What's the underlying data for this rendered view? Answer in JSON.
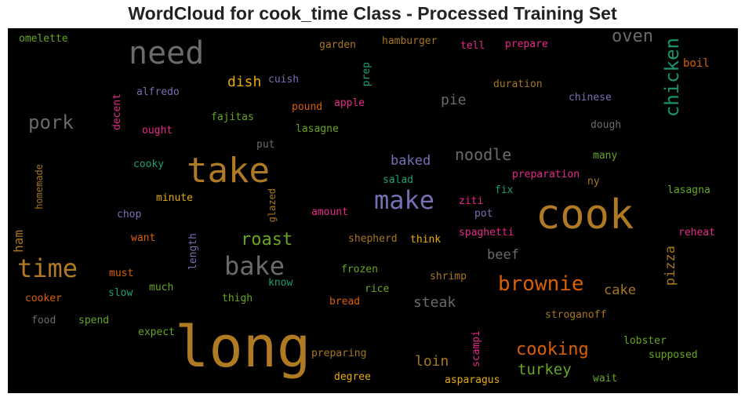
{
  "chart_data": {
    "type": "wordcloud",
    "title": "WordCloud for cook_time Class - Processed Training Set",
    "background": "#000000",
    "palette": {
      "gold": "#b07a22",
      "gray": "#6a6a6a",
      "green": "#1b9e77",
      "teal": "#199470",
      "orange": "#d95f02",
      "purple": "#7570b3",
      "pink": "#e7298a",
      "lime": "#66a61e",
      "yellow": "#e6ab02",
      "brown": "#a6761d"
    },
    "words": [
      {
        "text": "long",
        "color": "gold"
      },
      {
        "text": "cook",
        "color": "gold"
      },
      {
        "text": "take",
        "color": "gold"
      },
      {
        "text": "need",
        "color": "gray"
      },
      {
        "text": "make",
        "color": "purple"
      },
      {
        "text": "time",
        "color": "gold"
      },
      {
        "text": "bake",
        "color": "gray"
      },
      {
        "text": "chicken",
        "color": "teal"
      },
      {
        "text": "brownie",
        "color": "orange"
      },
      {
        "text": "cooking",
        "color": "orange"
      },
      {
        "text": "oven",
        "color": "gray"
      },
      {
        "text": "pork",
        "color": "gray"
      },
      {
        "text": "roast",
        "color": "lime"
      },
      {
        "text": "noodle",
        "color": "gray"
      },
      {
        "text": "turkey",
        "color": "lime"
      },
      {
        "text": "steak",
        "color": "gray"
      },
      {
        "text": "loin",
        "color": "brown"
      },
      {
        "text": "dish",
        "color": "yellow"
      },
      {
        "text": "pie",
        "color": "gray"
      },
      {
        "text": "beef",
        "color": "gray"
      },
      {
        "text": "pizza",
        "color": "brown"
      },
      {
        "text": "cake",
        "color": "brown"
      },
      {
        "text": "baked",
        "color": "purple"
      },
      {
        "text": "ham",
        "color": "brown"
      },
      {
        "text": "omelette",
        "color": "lime"
      },
      {
        "text": "garden",
        "color": "brown"
      },
      {
        "text": "hamburger",
        "color": "brown"
      },
      {
        "text": "tell",
        "color": "pink"
      },
      {
        "text": "prepare",
        "color": "pink"
      },
      {
        "text": "boil",
        "color": "orange"
      },
      {
        "text": "prep",
        "color": "green"
      },
      {
        "text": "cuish",
        "color": "purple"
      },
      {
        "text": "alfredo",
        "color": "purple"
      },
      {
        "text": "duration",
        "color": "brown"
      },
      {
        "text": "decent",
        "color": "pink"
      },
      {
        "text": "pound",
        "color": "orange"
      },
      {
        "text": "apple",
        "color": "pink"
      },
      {
        "text": "chinese",
        "color": "purple"
      },
      {
        "text": "fajitas",
        "color": "lime"
      },
      {
        "text": "ought",
        "color": "pink"
      },
      {
        "text": "lasagne",
        "color": "lime"
      },
      {
        "text": "dough",
        "color": "gray"
      },
      {
        "text": "put",
        "color": "gray"
      },
      {
        "text": "cooky",
        "color": "green"
      },
      {
        "text": "many",
        "color": "lime"
      },
      {
        "text": "homemade",
        "color": "brown"
      },
      {
        "text": "preparation",
        "color": "pink"
      },
      {
        "text": "ny",
        "color": "brown"
      },
      {
        "text": "glazed",
        "color": "brown"
      },
      {
        "text": "salad",
        "color": "green"
      },
      {
        "text": "fix",
        "color": "green"
      },
      {
        "text": "lasagna",
        "color": "lime"
      },
      {
        "text": "minute",
        "color": "yellow"
      },
      {
        "text": "ziti",
        "color": "pink"
      },
      {
        "text": "chop",
        "color": "purple"
      },
      {
        "text": "amount",
        "color": "pink"
      },
      {
        "text": "pot",
        "color": "purple"
      },
      {
        "text": "want",
        "color": "orange"
      },
      {
        "text": "length",
        "color": "purple"
      },
      {
        "text": "spaghetti",
        "color": "pink"
      },
      {
        "text": "reheat",
        "color": "pink"
      },
      {
        "text": "shepherd",
        "color": "brown"
      },
      {
        "text": "think",
        "color": "yellow"
      },
      {
        "text": "must",
        "color": "orange"
      },
      {
        "text": "know",
        "color": "green"
      },
      {
        "text": "frozen",
        "color": "lime"
      },
      {
        "text": "shrimp",
        "color": "brown"
      },
      {
        "text": "much",
        "color": "lime"
      },
      {
        "text": "slow",
        "color": "green"
      },
      {
        "text": "rice",
        "color": "lime"
      },
      {
        "text": "cooker",
        "color": "orange"
      },
      {
        "text": "thigh",
        "color": "lime"
      },
      {
        "text": "bread",
        "color": "orange"
      },
      {
        "text": "food",
        "color": "gray"
      },
      {
        "text": "spend",
        "color": "lime"
      },
      {
        "text": "stroganoff",
        "color": "brown"
      },
      {
        "text": "expect",
        "color": "lime"
      },
      {
        "text": "scampi",
        "color": "pink"
      },
      {
        "text": "lobster",
        "color": "lime"
      },
      {
        "text": "preparing",
        "color": "brown"
      },
      {
        "text": "supposed",
        "color": "lime"
      },
      {
        "text": "degree",
        "color": "yellow"
      },
      {
        "text": "asparagus",
        "color": "yellow"
      },
      {
        "text": "wait",
        "color": "lime"
      }
    ]
  }
}
